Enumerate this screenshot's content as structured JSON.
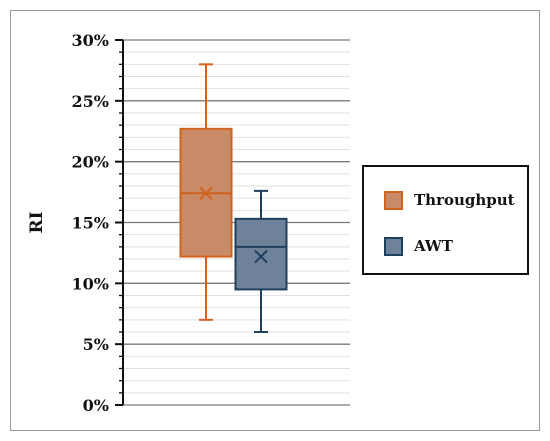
{
  "chart_data": {
    "type": "box",
    "ylabel": "RI",
    "xlabel": "",
    "title": "",
    "ylim": [
      0,
      30
    ],
    "y_ticks": [
      "0%",
      "5%",
      "10%",
      "15%",
      "20%",
      "25%",
      "30%"
    ],
    "y_tick_values": [
      0,
      5,
      10,
      15,
      20,
      25,
      30
    ],
    "grid": true,
    "legend_position": "right",
    "series": [
      {
        "name": "Throughput",
        "min": 7.0,
        "q1": 12.2,
        "median": 17.4,
        "mean": 17.4,
        "q3": 22.7,
        "max": 28.0,
        "stroke": "#d0631e",
        "fill": "#c98a67"
      },
      {
        "name": "AWT",
        "min": 6.0,
        "q1": 9.5,
        "median": 13.0,
        "mean": 12.2,
        "q3": 15.3,
        "max": 17.6,
        "stroke": "#1f3f5f",
        "fill": "#6e8299"
      }
    ]
  },
  "legend": {
    "items": [
      {
        "label": "Throughput",
        "stroke": "#d0631e",
        "fill": "#c98a67"
      },
      {
        "label": "AWT",
        "stroke": "#1f3f5f",
        "fill": "#6e8299"
      }
    ]
  }
}
